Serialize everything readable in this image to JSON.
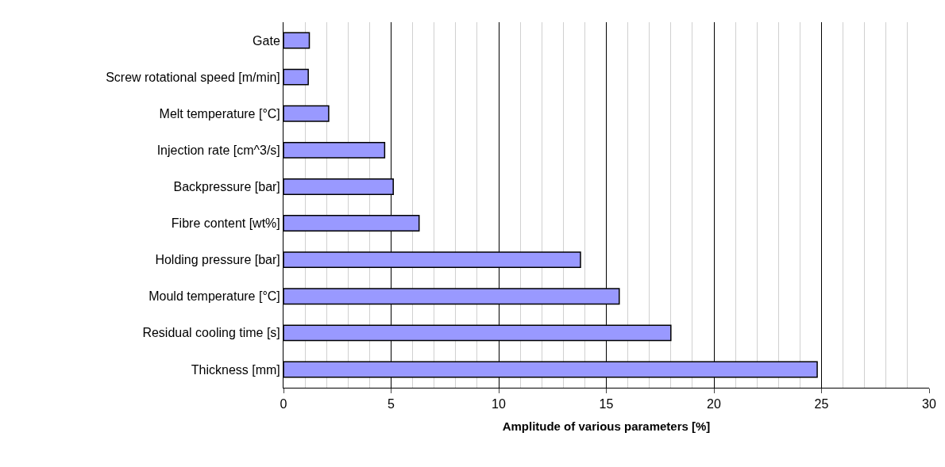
{
  "chart_data": {
    "type": "bar",
    "orientation": "horizontal",
    "xlabel": "Amplitude of various parameters [%]",
    "categories": [
      "Gate",
      "Screw rotational speed [m/min]",
      "Melt temperature [°C]",
      "Injection rate [cm^3/s]",
      "Backpressure [bar]",
      "Fibre content [wt%]",
      "Holding pressure [bar]",
      "Mould temperature [°C]",
      "Residual cooling time [s]",
      "Thickness [mm]"
    ],
    "values": [
      1.2,
      1.15,
      2.1,
      4.7,
      5.1,
      6.3,
      13.8,
      15.6,
      18.0,
      24.8
    ],
    "color": "#9999ff",
    "xlim": [
      0,
      30
    ],
    "xticks": [
      0,
      5,
      10,
      15,
      20,
      25,
      30
    ],
    "grid": "x",
    "legend": false
  }
}
